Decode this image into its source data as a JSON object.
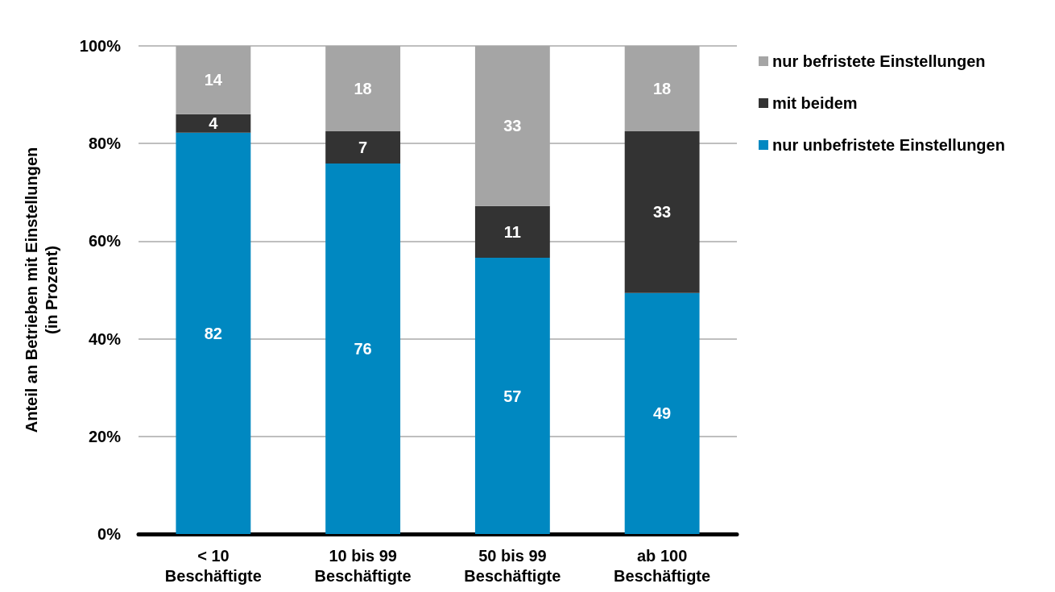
{
  "chart_data": {
    "type": "bar",
    "stacked": true,
    "ylabel": "Anteil an Betrieben mit Einstellungen\n(in Prozent)",
    "categories": [
      "< 10\nBeschäftigte",
      "10 bis 99\nBeschäftigte",
      "50 bis 99\nBeschäftigte",
      "ab 100\nBeschäftigte"
    ],
    "series": [
      {
        "name": "nur unbefristete Einstellungen",
        "color": "#0088c1",
        "values": [
          82.2,
          75.9,
          56.6,
          49.4
        ],
        "value_labels": [
          "82",
          "76",
          "57",
          "49"
        ]
      },
      {
        "name": "mit beidem",
        "color": "#333333",
        "values": [
          3.8,
          6.6,
          10.6,
          33.1
        ],
        "value_labels": [
          "4",
          "7",
          "11",
          "33"
        ]
      },
      {
        "name": "nur befristete Einstellungen",
        "color": "#a5a5a5",
        "values": [
          14.0,
          17.5,
          32.8,
          17.5
        ],
        "value_labels": [
          "14",
          "18",
          "33",
          "18"
        ]
      }
    ],
    "ylim": [
      0,
      100
    ],
    "yticks": [
      {
        "value": 0,
        "label": "0%"
      },
      {
        "value": 20,
        "label": "20%"
      },
      {
        "value": 40,
        "label": "40%"
      },
      {
        "value": 60,
        "label": "60%"
      },
      {
        "value": 80,
        "label": "80%"
      },
      {
        "value": 100,
        "label": "100%"
      }
    ],
    "grid": "y",
    "legend": "top right"
  }
}
